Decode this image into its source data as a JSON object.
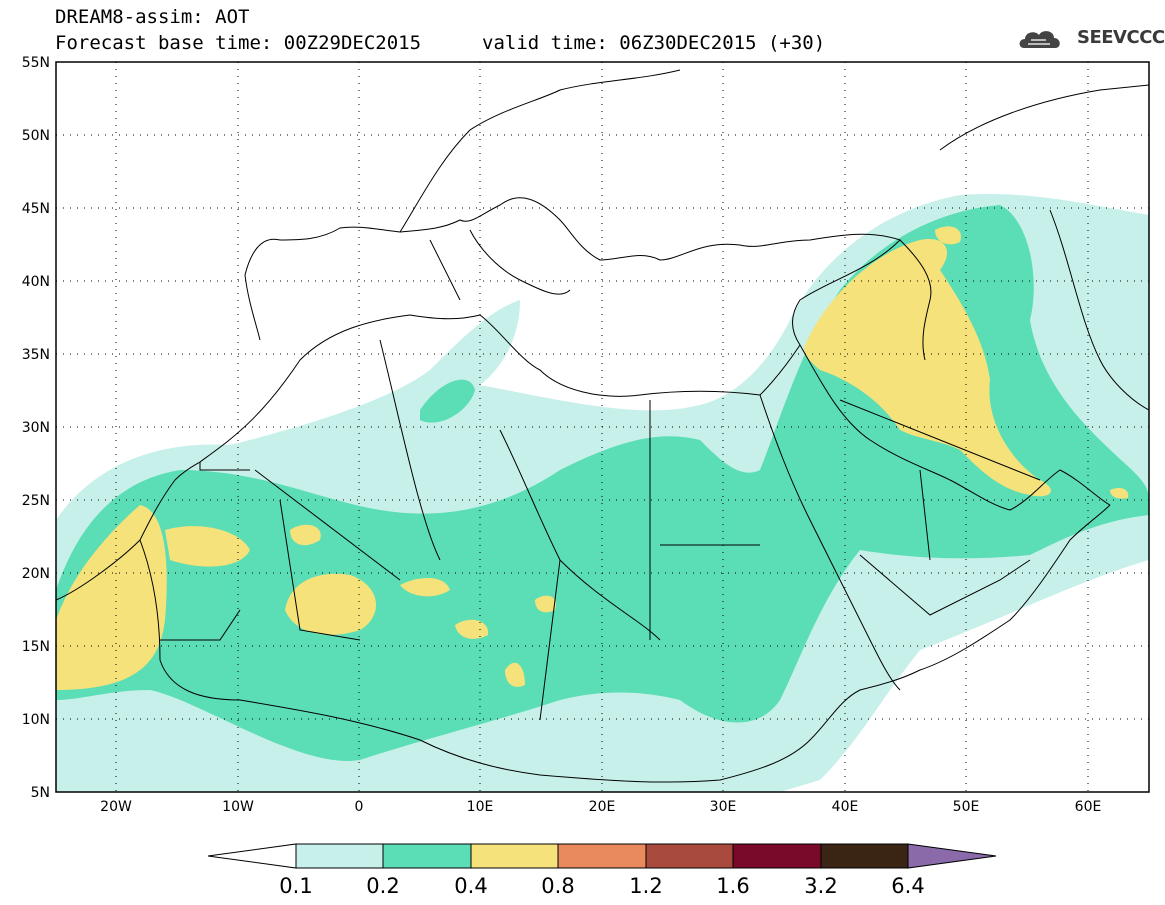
{
  "header": {
    "line1": "DREAM8-assim: AOT",
    "line2": "Forecast base time: 00Z29DEC2015",
    "line3": "valid time: 06Z30DEC2015 (+30)"
  },
  "logo": {
    "text": "SEEVCCC",
    "icon": "cloud-icon"
  },
  "map": {
    "lat_labels": [
      "55N",
      "50N",
      "45N",
      "40N",
      "35N",
      "30N",
      "25N",
      "20N",
      "15N",
      "10N",
      "5N"
    ],
    "lon_labels": [
      "20W",
      "10W",
      "0",
      "10E",
      "20E",
      "30E",
      "40E",
      "50E",
      "60E"
    ],
    "lat_range": [
      5,
      55
    ],
    "lon_range": [
      -25,
      65
    ],
    "grid": true
  },
  "colorbar": {
    "labels": [
      "0.1",
      "0.2",
      "0.4",
      "0.8",
      "1.2",
      "1.6",
      "3.2",
      "6.4"
    ],
    "colors": [
      "#c7f0ea",
      "#5bddb5",
      "#f5e27a",
      "#e88a5e",
      "#a84a3c",
      "#7a0a2a",
      "#3a2515",
      "#8a6aa8"
    ],
    "under_color": "#ffffff"
  }
}
